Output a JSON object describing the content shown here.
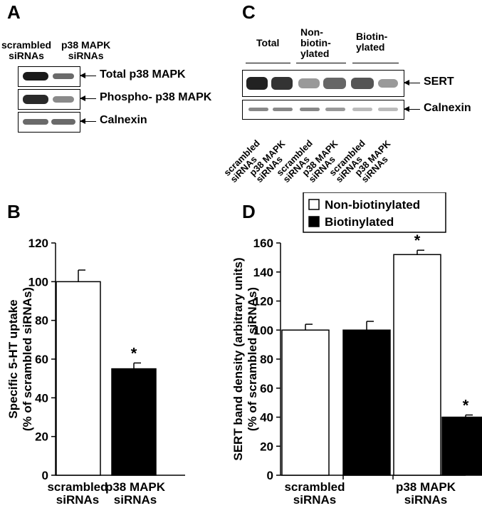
{
  "panels": {
    "a": {
      "letter": "A",
      "lane_labels": [
        "scrambled\nsiRNAs",
        "p38 MAPK\nsiRNAs"
      ],
      "blots": [
        "Total p38 MAPK",
        "Phospho- p38 MAPK",
        "Calnexin"
      ]
    },
    "c": {
      "letter": "C",
      "groups": [
        "Total",
        "Non-\nbiotin-\nylated",
        "Biotin-\nylated"
      ],
      "blots": [
        "SERT",
        "Calnexin"
      ],
      "lane_labels": [
        "scrambled\nsiRNAs",
        "p38 MAPK\nsiRNAs",
        "scrambled\nsiRNAs",
        "p38 MAPK\nsiRNAs",
        "scrambled\nsiRNAs",
        "p38 MAPK\nsiRNAs"
      ]
    },
    "b": {
      "letter": "B"
    },
    "d": {
      "letter": "D"
    }
  },
  "chart_data": [
    {
      "type": "bar",
      "panel": "B",
      "categories": [
        "scrambled\nsiRNAs",
        "p38 MAPK\nsiRNAs"
      ],
      "ylabel": "Specific 5-HT uptake\n(% of scrambled siRNAs)",
      "ylim": [
        0,
        120
      ],
      "yticks": [
        0,
        20,
        40,
        60,
        80,
        100,
        120
      ],
      "series": [
        {
          "values": [
            100,
            55
          ],
          "errors": [
            6,
            3
          ],
          "colors": [
            "#ffffff",
            "#000000"
          ],
          "significance": [
            "",
            "*"
          ]
        }
      ]
    },
    {
      "type": "bar",
      "panel": "D",
      "categories": [
        "scrambled\nsiRNAs",
        "p38 MAPK\nsiRNAs"
      ],
      "ylabel": "SERT band density (arbitrary units)\n(% of scrambled siRNAs)",
      "ylim": [
        0,
        160
      ],
      "yticks": [
        0,
        20,
        40,
        60,
        80,
        100,
        120,
        140,
        160
      ],
      "legend": "top",
      "series": [
        {
          "name": "Non-biotinylated",
          "color": "#ffffff",
          "values": [
            100,
            152
          ],
          "errors": [
            4,
            3
          ],
          "significance": [
            "",
            "*"
          ]
        },
        {
          "name": "Biotinylated",
          "color": "#000000",
          "values": [
            100,
            40
          ],
          "errors": [
            6,
            1.5
          ],
          "significance": [
            "",
            "*"
          ]
        }
      ]
    }
  ]
}
